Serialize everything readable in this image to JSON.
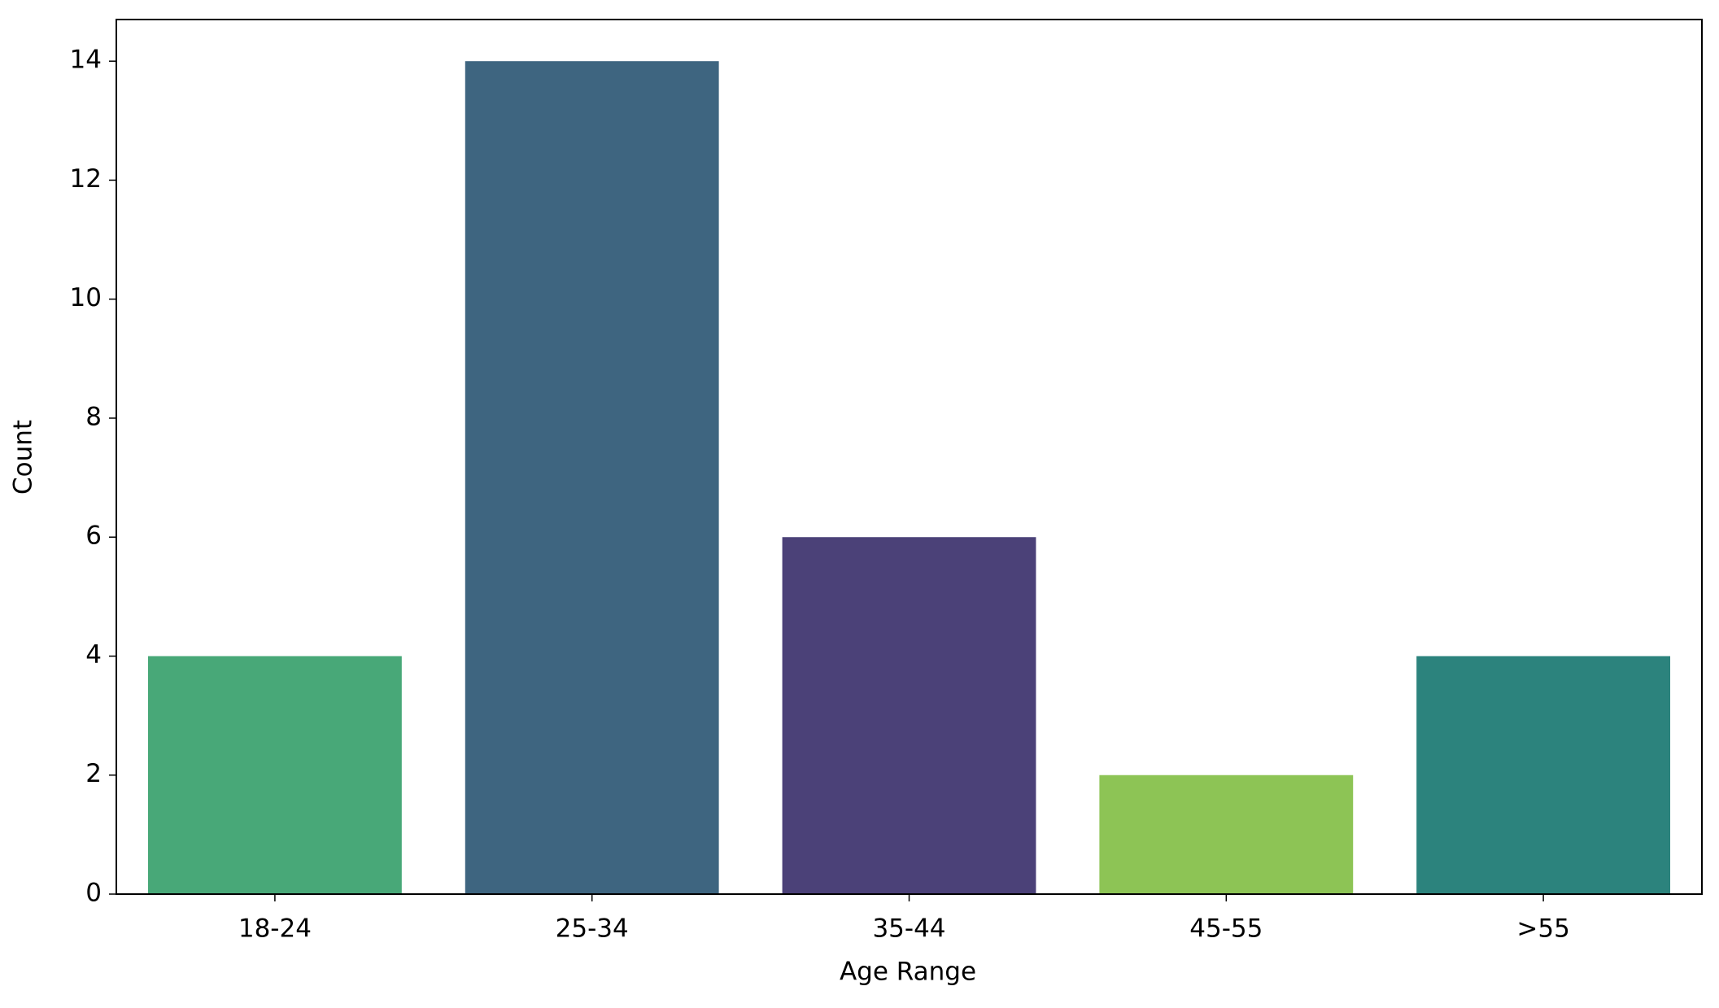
{
  "chart_data": {
    "type": "bar",
    "x_label": "Age Range",
    "y_label": "Count",
    "categories": [
      "18-24",
      "25-34",
      "35-44",
      "45-55",
      ">55"
    ],
    "values": [
      4,
      14,
      6,
      2,
      4
    ],
    "colors": [
      "#48a878",
      "#3e6580",
      "#4b4178",
      "#8dc455",
      "#2c837d"
    ],
    "ylim": [
      0,
      14.7
    ],
    "yticks": [
      0,
      2,
      4,
      6,
      8,
      10,
      12,
      14
    ],
    "grid": false
  }
}
